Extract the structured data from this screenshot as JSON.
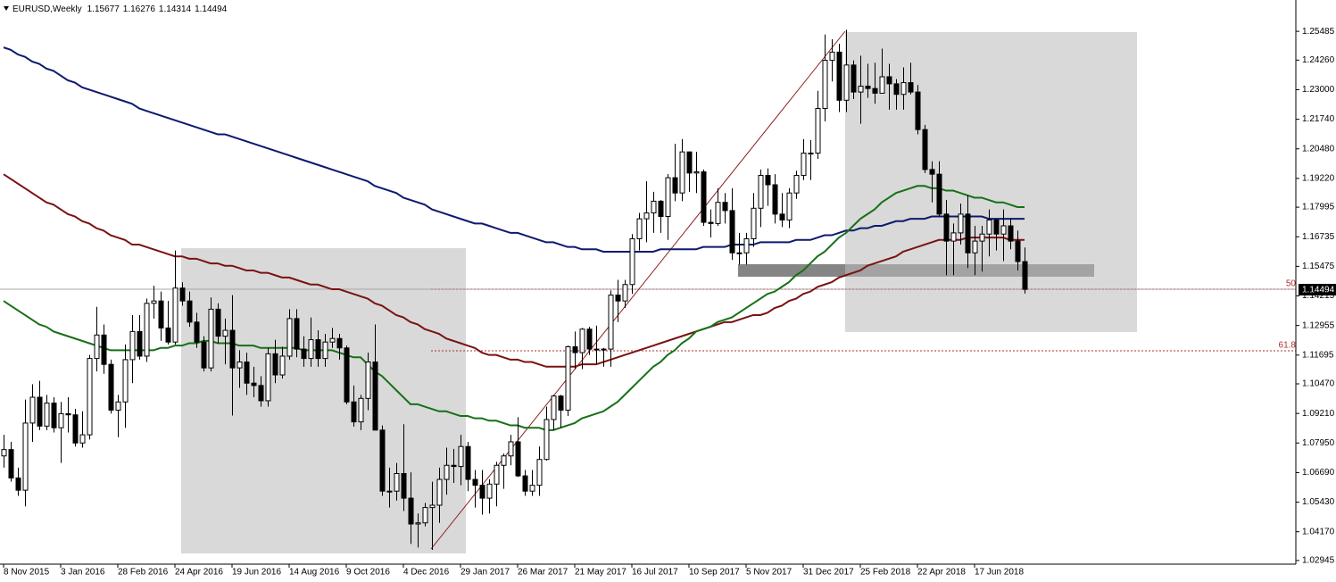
{
  "chart_data": {
    "type": "candlestick",
    "title": "EURUSD,Weekly",
    "categories": [
      "8 Nov 2015",
      null,
      null,
      null,
      null,
      null,
      null,
      null,
      "3 Jan 2016",
      null,
      null,
      null,
      null,
      null,
      null,
      null,
      "28 Feb 2016",
      null,
      null,
      null,
      null,
      null,
      null,
      null,
      "24 Apr 2016",
      null,
      null,
      null,
      null,
      null,
      null,
      null,
      "19 Jun 2016",
      null,
      null,
      null,
      null,
      null,
      null,
      null,
      "14 Aug 2016",
      null,
      null,
      null,
      null,
      null,
      null,
      null,
      "9 Oct 2016",
      null,
      null,
      null,
      null,
      null,
      null,
      null,
      "4 Dec 2016",
      null,
      null,
      null,
      null,
      null,
      null,
      null,
      "29 Jan 2017",
      null,
      null,
      null,
      null,
      null,
      null,
      null,
      "26 Mar 2017",
      null,
      null,
      null,
      null,
      null,
      null,
      null,
      "21 May 2017",
      null,
      null,
      null,
      null,
      null,
      null,
      null,
      "16 Jul 2017",
      null,
      null,
      null,
      null,
      null,
      null,
      null,
      "10 Sep 2017",
      null,
      null,
      null,
      null,
      null,
      null,
      null,
      "5 Nov 2017",
      null,
      null,
      null,
      null,
      null,
      null,
      null,
      "31 Dec 2017",
      null,
      null,
      null,
      null,
      null,
      null,
      null,
      "25 Feb 2018",
      null,
      null,
      null,
      null,
      null,
      null,
      null,
      "22 Apr 2018",
      null,
      null,
      null,
      null,
      null,
      null,
      null,
      "17 Jun 2018",
      null,
      null,
      null,
      null,
      null,
      null,
      null
    ],
    "open": [
      1.074,
      1.0767,
      1.0646,
      1.0594,
      1.088,
      1.099,
      1.0867,
      1.0965,
      1.086,
      1.092,
      1.0915,
      1.0795,
      1.083,
      1.1155,
      1.1255,
      1.113,
      1.0935,
      1.097,
      1.115,
      1.127,
      1.1165,
      1.139,
      1.14,
      1.1285,
      1.1225,
      1.1455,
      1.14,
      1.131,
      1.1225,
      1.1115,
      1.1365,
      1.125,
      1.1275,
      1.1115,
      1.114,
      1.105,
      1.104,
      1.0975,
      1.1175,
      1.1085,
      1.1165,
      1.1325,
      1.1195,
      1.1155,
      1.1235,
      1.1155,
      1.1225,
      1.124,
      1.12,
      1.097,
      1.0885,
      1.0985,
      1.114,
      1.085,
      1.059,
      1.059,
      1.0665,
      1.056,
      1.045,
      1.0455,
      1.052,
      1.053,
      1.064,
      1.07,
      1.0695,
      1.078,
      1.064,
      1.0615,
      1.056,
      1.062,
      1.07,
      1.074,
      1.08,
      1.0655,
      1.059,
      1.0615,
      1.0725,
      1.0895,
      1.0995,
      1.0935,
      1.1205,
      1.118,
      1.128,
      1.1195,
      1.1195,
      1.1195,
      1.1425,
      1.14,
      1.147,
      1.1665,
      1.175,
      1.1775,
      1.1825,
      1.176,
      1.1925,
      1.186,
      1.2035,
      1.1945,
      1.195,
      1.1735,
      1.173,
      1.182,
      1.1785,
      1.1605,
      1.1605,
      1.1665,
      1.1795,
      1.1935,
      1.1895,
      1.177,
      1.1745,
      1.186,
      1.1935,
      1.203,
      1.203,
      1.222,
      1.2425,
      1.246,
      1.2255,
      1.2405,
      1.229,
      1.2315,
      1.2305,
      1.2285,
      1.2355,
      1.2325,
      1.228,
      1.233,
      1.229,
      1.213,
      1.196,
      1.194,
      1.177,
      1.1655,
      1.169,
      1.177,
      1.1605,
      1.1655,
      1.1685,
      1.1745,
      1.1685,
      1.172,
      1.1655,
      1.15677
    ],
    "high": [
      1.083,
      1.08,
      1.069,
      1.098,
      1.1045,
      1.106,
      1.1,
      1.099,
      1.097,
      1.099,
      1.094,
      1.093,
      1.117,
      1.1375,
      1.13,
      1.115,
      1.1,
      1.1215,
      1.134,
      1.134,
      1.141,
      1.1465,
      1.144,
      1.14,
      1.1615,
      1.148,
      1.144,
      1.135,
      1.125,
      1.1415,
      1.139,
      1.1325,
      1.1425,
      1.119,
      1.118,
      1.112,
      1.108,
      1.12,
      1.1235,
      1.1205,
      1.1365,
      1.1365,
      1.125,
      1.133,
      1.1275,
      1.126,
      1.1285,
      1.126,
      1.121,
      1.104,
      1.1,
      1.118,
      1.13,
      1.087,
      1.069,
      1.071,
      1.0875,
      1.067,
      1.0495,
      1.054,
      1.063,
      1.069,
      1.0775,
      1.077,
      1.083,
      1.08,
      1.068,
      1.068,
      1.064,
      1.0715,
      1.075,
      1.083,
      1.0905,
      1.068,
      1.068,
      1.078,
      1.095,
      1.1,
      1.1,
      1.121,
      1.127,
      1.1285,
      1.129,
      1.1295,
      1.12,
      1.1445,
      1.149,
      1.149,
      1.1685,
      1.1775,
      1.191,
      1.1865,
      1.183,
      1.194,
      1.207,
      1.209,
      1.2035,
      1.2035,
      1.196,
      1.179,
      1.188,
      1.186,
      1.188,
      1.169,
      1.169,
      1.186,
      1.196,
      1.1965,
      1.194,
      1.186,
      1.188,
      1.1955,
      1.209,
      1.2085,
      1.2295,
      1.2535,
      1.2515,
      1.2495,
      1.2555,
      1.2425,
      1.2445,
      1.241,
      1.2415,
      1.2475,
      1.241,
      1.2345,
      1.2395,
      1.2415,
      1.232,
      1.215,
      1.1995,
      1.1995,
      1.183,
      1.173,
      1.1815,
      1.185,
      1.172,
      1.172,
      1.179,
      1.1745,
      1.179,
      1.175,
      1.17,
      1.16276
    ],
    "low": [
      1.069,
      1.063,
      1.057,
      1.0525,
      1.08,
      1.085,
      1.085,
      1.084,
      1.071,
      1.084,
      1.078,
      1.0775,
      1.081,
      1.11,
      1.109,
      1.092,
      1.082,
      1.086,
      1.105,
      1.115,
      1.114,
      1.1325,
      1.123,
      1.1215,
      1.1215,
      1.138,
      1.129,
      1.12,
      1.11,
      1.11,
      1.122,
      1.113,
      1.0912,
      1.103,
      1.1,
      1.099,
      1.095,
      1.095,
      1.105,
      1.107,
      1.115,
      1.116,
      1.112,
      1.112,
      1.112,
      1.112,
      1.12,
      1.115,
      1.096,
      1.0865,
      1.085,
      1.0935,
      1.085,
      1.057,
      1.052,
      1.055,
      1.0505,
      1.0365,
      1.035,
      1.044,
      1.034,
      1.0455,
      1.0575,
      1.0625,
      1.0615,
      1.059,
      1.052,
      1.049,
      1.0495,
      1.0525,
      1.06,
      1.07,
      1.065,
      1.057,
      1.057,
      1.057,
      1.072,
      1.085,
      1.086,
      1.091,
      1.111,
      1.111,
      1.117,
      1.113,
      1.112,
      1.112,
      1.131,
      1.137,
      1.143,
      1.1615,
      1.165,
      1.169,
      1.169,
      1.166,
      1.1825,
      1.1825,
      1.1865,
      1.186,
      1.172,
      1.167,
      1.172,
      1.173,
      1.1575,
      1.1555,
      1.1555,
      1.163,
      1.1715,
      1.1805,
      1.173,
      1.1715,
      1.171,
      1.1835,
      1.1915,
      1.1915,
      1.2005,
      1.2165,
      1.2335,
      1.2205,
      1.2205,
      1.226,
      1.2155,
      1.2265,
      1.224,
      1.2285,
      1.2215,
      1.2215,
      1.2215,
      1.228,
      1.211,
      1.1945,
      1.182,
      1.176,
      1.151,
      1.151,
      1.164,
      1.154,
      1.151,
      1.1525,
      1.159,
      1.1615,
      1.157,
      1.162,
      1.153,
      1.14314
    ],
    "close": [
      1.0767,
      1.0646,
      1.0594,
      1.088,
      1.099,
      1.0867,
      1.0965,
      1.086,
      1.092,
      1.0915,
      1.0795,
      1.083,
      1.1155,
      1.1255,
      1.113,
      1.0935,
      1.097,
      1.115,
      1.127,
      1.1165,
      1.139,
      1.14,
      1.1285,
      1.1225,
      1.1455,
      1.14,
      1.131,
      1.1225,
      1.1115,
      1.1365,
      1.125,
      1.1275,
      1.1115,
      1.114,
      1.105,
      1.104,
      1.0975,
      1.1175,
      1.1085,
      1.1165,
      1.1325,
      1.1195,
      1.1155,
      1.1235,
      1.1155,
      1.1225,
      1.124,
      1.12,
      1.097,
      1.0885,
      1.0985,
      1.114,
      1.085,
      1.059,
      1.059,
      1.0665,
      1.056,
      1.045,
      1.0455,
      1.052,
      1.053,
      1.064,
      1.07,
      1.0695,
      1.078,
      1.064,
      1.0615,
      1.056,
      1.062,
      1.07,
      1.074,
      1.08,
      1.0655,
      1.059,
      1.0615,
      1.0725,
      1.0895,
      1.0995,
      1.0935,
      1.1205,
      1.118,
      1.128,
      1.1195,
      1.1195,
      1.1195,
      1.1425,
      1.14,
      1.147,
      1.1665,
      1.175,
      1.1775,
      1.1825,
      1.176,
      1.1925,
      1.186,
      1.2035,
      1.1945,
      1.195,
      1.1735,
      1.173,
      1.182,
      1.1785,
      1.1605,
      1.1605,
      1.1665,
      1.1795,
      1.1935,
      1.1895,
      1.177,
      1.1745,
      1.186,
      1.1935,
      1.203,
      1.203,
      1.222,
      1.2425,
      1.246,
      1.2255,
      1.2405,
      1.229,
      1.2315,
      1.2305,
      1.2285,
      1.2355,
      1.2325,
      1.228,
      1.233,
      1.229,
      1.213,
      1.196,
      1.194,
      1.177,
      1.1655,
      1.169,
      1.177,
      1.1605,
      1.1655,
      1.1685,
      1.1745,
      1.1685,
      1.172,
      1.1655,
      1.1568,
      1.14494
    ],
    "series": [
      {
        "color": "#0c1a6e",
        "values": [
          1.248,
          1.247,
          1.245,
          1.244,
          1.242,
          1.241,
          1.239,
          1.238,
          1.236,
          1.234,
          1.233,
          1.231,
          1.23,
          1.229,
          1.228,
          1.227,
          1.226,
          1.225,
          1.224,
          1.222,
          1.221,
          1.22,
          1.219,
          1.218,
          1.217,
          1.216,
          1.215,
          1.214,
          1.213,
          1.212,
          1.211,
          1.211,
          1.21,
          1.209,
          1.208,
          1.207,
          1.206,
          1.205,
          1.204,
          1.203,
          1.202,
          1.201,
          1.2,
          1.199,
          1.198,
          1.197,
          1.196,
          1.195,
          1.194,
          1.193,
          1.192,
          1.191,
          1.189,
          1.188,
          1.187,
          1.186,
          1.184,
          1.183,
          1.182,
          1.181,
          1.179,
          1.178,
          1.177,
          1.176,
          1.175,
          1.174,
          1.173,
          1.173,
          1.172,
          1.171,
          1.17,
          1.169,
          1.169,
          1.168,
          1.167,
          1.166,
          1.165,
          1.165,
          1.164,
          1.163,
          1.163,
          1.162,
          1.162,
          1.162,
          1.161,
          1.161,
          1.161,
          1.161,
          1.161,
          1.161,
          1.161,
          1.161,
          1.162,
          1.162,
          1.162,
          1.162,
          1.162,
          1.162,
          1.163,
          1.163,
          1.163,
          1.163,
          1.164,
          1.164,
          1.164,
          1.164,
          1.165,
          1.165,
          1.165,
          1.165,
          1.165,
          1.166,
          1.166,
          1.166,
          1.167,
          1.168,
          1.168,
          1.169,
          1.17,
          1.17,
          1.171,
          1.171,
          1.172,
          1.172,
          1.173,
          1.174,
          1.174,
          1.175,
          1.175,
          1.175,
          1.176,
          1.176,
          1.176,
          1.176,
          1.176,
          1.176,
          1.176,
          1.176,
          1.175,
          1.175,
          1.175,
          1.175,
          1.175,
          1.175
        ]
      },
      {
        "color": "#7a1212",
        "values": [
          1.194,
          1.192,
          1.19,
          1.188,
          1.186,
          1.184,
          1.182,
          1.181,
          1.179,
          1.177,
          1.176,
          1.174,
          1.173,
          1.171,
          1.17,
          1.168,
          1.167,
          1.166,
          1.164,
          1.164,
          1.163,
          1.162,
          1.161,
          1.16,
          1.159,
          1.159,
          1.158,
          1.158,
          1.157,
          1.156,
          1.156,
          1.155,
          1.155,
          1.154,
          1.153,
          1.153,
          1.152,
          1.152,
          1.151,
          1.15,
          1.15,
          1.149,
          1.148,
          1.147,
          1.147,
          1.146,
          1.145,
          1.145,
          1.144,
          1.143,
          1.142,
          1.141,
          1.139,
          1.138,
          1.136,
          1.134,
          1.133,
          1.131,
          1.13,
          1.128,
          1.127,
          1.126,
          1.124,
          1.123,
          1.122,
          1.121,
          1.12,
          1.118,
          1.117,
          1.117,
          1.116,
          1.115,
          1.115,
          1.114,
          1.114,
          1.113,
          1.112,
          1.112,
          1.112,
          1.112,
          1.112,
          1.113,
          1.113,
          1.113,
          1.114,
          1.115,
          1.116,
          1.117,
          1.118,
          1.119,
          1.12,
          1.121,
          1.122,
          1.123,
          1.124,
          1.125,
          1.126,
          1.127,
          1.128,
          1.129,
          1.13,
          1.131,
          1.131,
          1.132,
          1.133,
          1.134,
          1.134,
          1.135,
          1.137,
          1.138,
          1.14,
          1.141,
          1.143,
          1.144,
          1.146,
          1.147,
          1.148,
          1.15,
          1.151,
          1.152,
          1.153,
          1.155,
          1.156,
          1.157,
          1.158,
          1.159,
          1.161,
          1.162,
          1.163,
          1.164,
          1.165,
          1.166,
          1.166,
          1.166,
          1.166,
          1.167,
          1.167,
          1.167,
          1.167,
          1.167,
          1.167,
          1.166,
          1.166,
          1.166
        ]
      },
      {
        "color": "#167016",
        "values": [
          1.14,
          1.138,
          1.136,
          1.134,
          1.132,
          1.13,
          1.129,
          1.127,
          1.126,
          1.125,
          1.124,
          1.123,
          1.122,
          1.121,
          1.12,
          1.119,
          1.119,
          1.119,
          1.119,
          1.119,
          1.119,
          1.119,
          1.12,
          1.12,
          1.121,
          1.121,
          1.122,
          1.122,
          1.123,
          1.123,
          1.122,
          1.122,
          1.122,
          1.121,
          1.121,
          1.121,
          1.12,
          1.12,
          1.12,
          1.12,
          1.12,
          1.12,
          1.119,
          1.119,
          1.119,
          1.119,
          1.119,
          1.118,
          1.117,
          1.116,
          1.116,
          1.113,
          1.11,
          1.108,
          1.105,
          1.102,
          1.099,
          1.096,
          1.096,
          1.095,
          1.094,
          1.093,
          1.093,
          1.092,
          1.091,
          1.091,
          1.09,
          1.09,
          1.089,
          1.089,
          1.088,
          1.087,
          1.087,
          1.086,
          1.086,
          1.086,
          1.085,
          1.085,
          1.086,
          1.087,
          1.088,
          1.09,
          1.091,
          1.092,
          1.093,
          1.095,
          1.097,
          1.1,
          1.103,
          1.106,
          1.109,
          1.112,
          1.114,
          1.117,
          1.119,
          1.122,
          1.124,
          1.127,
          1.128,
          1.129,
          1.131,
          1.132,
          1.133,
          1.135,
          1.137,
          1.139,
          1.141,
          1.143,
          1.144,
          1.146,
          1.148,
          1.151,
          1.153,
          1.156,
          1.159,
          1.161,
          1.164,
          1.167,
          1.169,
          1.172,
          1.175,
          1.177,
          1.179,
          1.182,
          1.184,
          1.186,
          1.187,
          1.188,
          1.189,
          1.189,
          1.188,
          1.188,
          1.187,
          1.187,
          1.186,
          1.185,
          1.184,
          1.184,
          1.183,
          1.182,
          1.182,
          1.181,
          1.18,
          1.18
        ]
      }
    ],
    "ylim": [
      1.0279,
      1.2682
    ],
    "yticks": [
      1.25485,
      {
        "value": 1.2426,
        "label": "1.24260"
      },
      {
        "value": 1.23,
        "label": "1.23000"
      },
      {
        "value": 1.2174,
        "label": "1.21740"
      },
      {
        "value": 1.2048,
        "label": "1.20480"
      },
      {
        "value": 1.1922,
        "label": "1.19220"
      },
      1.17995,
      1.16735,
      1.15475,
      1.14215,
      1.12955,
      1.11695,
      {
        "value": 1.1047,
        "label": "1.10470"
      },
      {
        "value": 1.0921,
        "label": "1.09210"
      },
      {
        "value": 1.0795,
        "label": "1.07950"
      },
      {
        "value": 1.0669,
        "label": "1.06690"
      },
      {
        "value": 1.0543,
        "label": "1.05430"
      },
      {
        "value": 1.0417,
        "label": "1.04170"
      },
      1.02945
    ],
    "fib_levels": [
      50,
      61.8
    ],
    "up_color": "#ffffff",
    "down_color": "#000000"
  }
}
